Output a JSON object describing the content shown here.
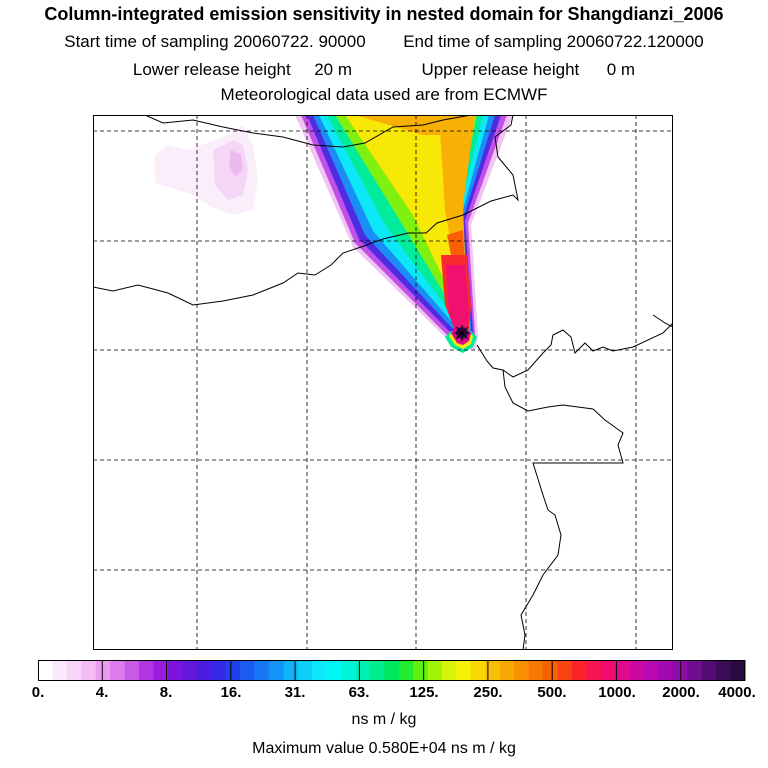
{
  "header": {
    "title": "Column-integrated emission sensitivity in nested domain for Shangdianzi_2006",
    "start_label": "Start time of sampling 20060722. 90000",
    "end_label": "End time of sampling 20060722.120000",
    "lower_label": "Lower release height",
    "lower_value": "20 m",
    "upper_label": "Upper release height",
    "upper_value": "0 m",
    "met_label": "Meteorological data used are from ECMWF"
  },
  "map": {
    "station": "Shangdianzi_2006",
    "maximum_value": 5800
  },
  "colorbar": {
    "tick_labels": [
      "0.",
      "4.",
      "8.",
      "16.",
      "31.",
      "63.",
      "125.",
      "250.",
      "500.",
      "1000.",
      "2000.",
      "4000."
    ],
    "colors": [
      "#ffffff",
      "#fce8fc",
      "#f8d4f8",
      "#f4bcf4",
      "#ec9cf0",
      "#dc7cec",
      "#c85ae8",
      "#b236e4",
      "#9a1cde",
      "#7e14dc",
      "#6418dc",
      "#4a1ee0",
      "#3628e4",
      "#2040ec",
      "#1a5cf0",
      "#1678f4",
      "#1294f6",
      "#10b2f8",
      "#0ecefa",
      "#0ce8fc",
      "#00f8f4",
      "#00f4d8",
      "#00f0b8",
      "#00ec90",
      "#00e860",
      "#20ec30",
      "#60f010",
      "#a0f408",
      "#d8f408",
      "#f8f008",
      "#f8d804",
      "#f8c004",
      "#f8a804",
      "#f89004",
      "#f87804",
      "#f86004",
      "#f84410",
      "#f82428",
      "#f81450",
      "#f00c70",
      "#e0088c",
      "#cc08a0",
      "#b808b0",
      "#a408b0",
      "#8c0ca8",
      "#700c90",
      "#540c74",
      "#3c0c58",
      "#280a40"
    ],
    "units": "ns m / kg",
    "maximum_text": "Maximum value  0.580E+04 ns m / kg"
  }
}
